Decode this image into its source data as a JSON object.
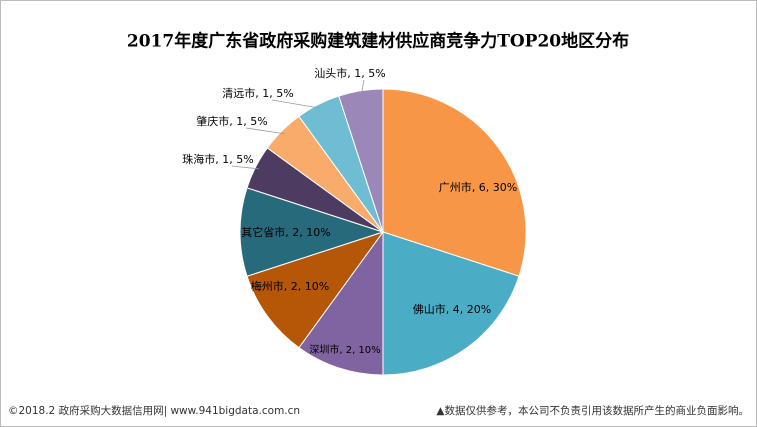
{
  "chart_data": {
    "type": "pie",
    "title": "2017年度广东省政府采购建筑建材供应商竞争力TOP20地区分布",
    "categories": [
      "广州市",
      "佛山市",
      "深圳市",
      "梅州市",
      "其它省市",
      "珠海市",
      "肇庆市",
      "清远市",
      "汕头市"
    ],
    "values": [
      6,
      4,
      2,
      2,
      2,
      1,
      1,
      1,
      1
    ],
    "value_labels": [
      "广州市, 6, 30%",
      "佛山市, 4, 20%",
      "深圳市, 2, 10%",
      "梅州市, 2, 10%",
      "其它省市, 2, 10%",
      "珠海市, 1, 5%",
      "肇庆市, 1, 5%",
      "清远市, 1, 5%",
      "汕头市, 1, 5%"
    ],
    "colors": [
      "#f79646",
      "#4bacc6",
      "#8064a2",
      "#b65708",
      "#276a7c",
      "#4d3b62",
      "#f9ab6b",
      "#6fbdd2",
      "#9c88b8"
    ]
  },
  "footer": {
    "left": "©2018.2 政府采购大数据信用网| www.941bigdata.com.cn",
    "right": "▲数据仅供参考，本公司不负责引用该数据所产生的商业负面影响。"
  }
}
